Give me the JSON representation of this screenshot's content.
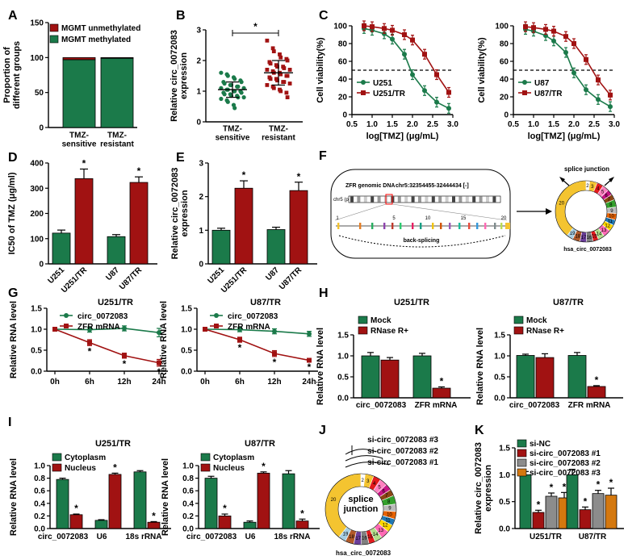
{
  "colors": {
    "green": "#1b7a4a",
    "red": "#a11212",
    "gray": "#8c8c8c",
    "orange": "#d4780f",
    "yellow": "#f4c430"
  },
  "chart_data": [
    {
      "id": "A",
      "type": "bar",
      "stacked": true,
      "ylabel": "Proportion of\ndifferent groups",
      "ylim": [
        0,
        150
      ],
      "yticks": [
        0,
        50,
        100,
        150
      ],
      "categories": [
        "TMZ-\nsensitive",
        "TMZ-\nresistant"
      ],
      "series": [
        {
          "name": "MGMT unmethylated",
          "values": [
            3,
            1
          ]
        },
        {
          "name": "MGMT methylated",
          "values": [
            97,
            99
          ]
        }
      ],
      "legend": "top-left"
    },
    {
      "id": "B",
      "type": "scatter",
      "ylabel": "Relative circ_0072083\nexpression",
      "ylim": [
        0,
        3
      ],
      "yticks": [
        0,
        1,
        2,
        3
      ],
      "categories": [
        "TMZ-\nsensitive",
        "TMZ-\nresistant"
      ],
      "groups": [
        {
          "mean": 1.05,
          "sd": 0.25,
          "points": [
            1.6,
            1.55,
            1.5,
            1.45,
            1.4,
            1.35,
            1.3,
            1.3,
            1.25,
            1.2,
            1.2,
            1.15,
            1.15,
            1.1,
            1.1,
            1.05,
            1.05,
            1.0,
            1.0,
            1.0,
            0.95,
            0.95,
            0.9,
            0.9,
            0.85,
            0.85,
            0.8,
            0.8,
            0.75,
            0.7,
            0.65,
            0.55,
            0.45
          ]
        },
        {
          "mean": 1.6,
          "sd": 0.4,
          "points": [
            2.65,
            2.4,
            2.3,
            2.2,
            2.1,
            2.05,
            2.0,
            1.95,
            1.9,
            1.85,
            1.8,
            1.8,
            1.75,
            1.7,
            1.7,
            1.65,
            1.6,
            1.6,
            1.55,
            1.5,
            1.5,
            1.45,
            1.4,
            1.4,
            1.35,
            1.3,
            1.3,
            1.25,
            1.2,
            1.15,
            1.1,
            1.05,
            1.0,
            0.95,
            0.8
          ]
        }
      ],
      "annotation": "*"
    },
    {
      "id": "C1",
      "type": "line",
      "xlabel": "log[TMZ] (μg/mL)",
      "ylabel": "Cell viability(%)",
      "xlim": [
        0.5,
        3.0
      ],
      "ylim": [
        0,
        100
      ],
      "xticks": [
        "0.5",
        "1.0",
        "1.5",
        "2.0",
        "2.5",
        "3.0"
      ],
      "yticks": [
        0,
        20,
        40,
        60,
        80,
        100
      ],
      "refline": 50,
      "x": [
        0.8,
        1.0,
        1.3,
        1.5,
        1.8,
        2.0,
        2.3,
        2.6,
        2.9
      ],
      "series": [
        {
          "name": "U251",
          "values": [
            97,
            95,
            91,
            85,
            68,
            45,
            27,
            14,
            7
          ]
        },
        {
          "name": "U251/TR",
          "values": [
            100,
            99,
            97,
            95,
            90,
            84,
            68,
            45,
            25
          ]
        }
      ],
      "legend": "bottom-left"
    },
    {
      "id": "C2",
      "type": "line",
      "xlabel": "log[TMZ] (μg/mL)",
      "ylabel": "Cell viability(%)",
      "xlim": [
        0.5,
        3.0
      ],
      "ylim": [
        0,
        100
      ],
      "xticks": [
        "0.5",
        "1.0",
        "1.5",
        "2.0",
        "2.5",
        "3.0"
      ],
      "yticks": [
        0,
        20,
        40,
        60,
        80,
        100
      ],
      "refline": 50,
      "x": [
        0.8,
        1.0,
        1.3,
        1.5,
        1.8,
        2.0,
        2.3,
        2.6,
        2.9
      ],
      "series": [
        {
          "name": "U87",
          "values": [
            96,
            94,
            89,
            83,
            70,
            47,
            28,
            17,
            9
          ]
        },
        {
          "name": "U87/TR",
          "values": [
            99,
            98,
            96,
            94,
            88,
            80,
            62,
            39,
            22
          ]
        }
      ],
      "legend": "bottom-left"
    },
    {
      "id": "D",
      "type": "bar",
      "ylabel": "IC50 of TMZ (μg/ml)",
      "ylim": [
        0,
        400
      ],
      "yticks": [
        0,
        100,
        200,
        300,
        400
      ],
      "categories": [
        "U251",
        "U251/TR",
        "U87",
        "U87/TR"
      ],
      "values": [
        122,
        338,
        108,
        323
      ],
      "errors": [
        12,
        38,
        8,
        22
      ],
      "stars": [
        false,
        true,
        false,
        true
      ]
    },
    {
      "id": "E",
      "type": "bar",
      "ylabel": "Relative circ_0072083\nexpression",
      "ylim": [
        0,
        3
      ],
      "yticks": [
        0,
        1,
        2,
        3
      ],
      "categories": [
        "U251",
        "U251/TR",
        "U87",
        "U87/TR"
      ],
      "values": [
        1.0,
        2.25,
        1.02,
        2.18
      ],
      "errors": [
        0.06,
        0.22,
        0.07,
        0.25
      ],
      "stars": [
        false,
        true,
        false,
        true
      ]
    },
    {
      "id": "G1",
      "type": "line",
      "title": "U251/TR",
      "ylabel": "Relative RNA level",
      "ylim": [
        0,
        1.5
      ],
      "yticks": [
        "0.0",
        "0.5",
        "1.0",
        "1.5"
      ],
      "categories": [
        "0h",
        "6h",
        "12h",
        "24h"
      ],
      "series": [
        {
          "name": "circ_0072083",
          "values": [
            1.0,
            0.99,
            1.02,
            0.92
          ],
          "errors": [
            0.03,
            0.06,
            0.06,
            0.1
          ]
        },
        {
          "name": "ZFR mRNA",
          "values": [
            1.0,
            0.68,
            0.37,
            0.2
          ],
          "errors": [
            0.03,
            0.07,
            0.06,
            0.08
          ]
        }
      ],
      "stars": [
        "",
        "*",
        "*",
        "*"
      ]
    },
    {
      "id": "G2",
      "type": "line",
      "title": "U87/TR",
      "ylabel": "Relative RNA level",
      "ylim": [
        0,
        1.5
      ],
      "yticks": [
        "0.0",
        "0.5",
        "1.0",
        "1.5"
      ],
      "categories": [
        "0h",
        "6h",
        "12h",
        "24h"
      ],
      "series": [
        {
          "name": "circ_0072083",
          "values": [
            1.0,
            0.99,
            0.95,
            0.89
          ],
          "errors": [
            0.03,
            0.05,
            0.06,
            0.06
          ]
        },
        {
          "name": "ZFR mRNA",
          "values": [
            1.0,
            0.75,
            0.42,
            0.26
          ],
          "errors": [
            0.03,
            0.06,
            0.07,
            0.03
          ]
        }
      ],
      "stars": [
        "",
        "*",
        "*",
        "*"
      ]
    },
    {
      "id": "H1",
      "type": "bar",
      "title": "U251/TR",
      "ylabel": "Relative RNA level",
      "ylim": [
        0,
        1.5
      ],
      "yticks": [
        "0.0",
        "0.5",
        "1.0",
        "1.5"
      ],
      "categories": [
        "circ_0072083",
        "ZFR mRNA"
      ],
      "series": [
        {
          "name": "Mock",
          "values": [
            1.0,
            1.0
          ],
          "errors": [
            0.08,
            0.06
          ]
        },
        {
          "name": "RNase R+",
          "values": [
            0.9,
            0.23
          ],
          "errors": [
            0.06,
            0.03
          ]
        }
      ],
      "stars": [
        [
          "",
          ""
        ],
        [
          "",
          "*"
        ]
      ]
    },
    {
      "id": "H2",
      "type": "bar",
      "title": "U87/TR",
      "ylabel": "Relative RNA level",
      "ylim": [
        0,
        1.5
      ],
      "yticks": [
        "0.0",
        "0.5",
        "1.0",
        "1.5"
      ],
      "categories": [
        "circ_0072083",
        "ZFR mRNA"
      ],
      "series": [
        {
          "name": "Mock",
          "values": [
            1.01,
            1.01
          ],
          "errors": [
            0.03,
            0.07
          ]
        },
        {
          "name": "RNase R+",
          "values": [
            0.96,
            0.27
          ],
          "errors": [
            0.09,
            0.02
          ]
        }
      ],
      "stars": [
        [
          "",
          ""
        ],
        [
          "",
          "*"
        ]
      ]
    },
    {
      "id": "I1",
      "type": "bar",
      "title": "U251/TR",
      "ylabel": "Relative RNA level",
      "ylim": [
        0,
        1.0
      ],
      "yticks": [
        "0.0",
        "0.2",
        "0.4",
        "0.6",
        "0.8",
        "1.0"
      ],
      "categories": [
        "circ_0072083",
        "U6",
        "18s rRNA"
      ],
      "series": [
        {
          "name": "Cytoplasm",
          "values": [
            0.78,
            0.13,
            0.9
          ],
          "errors": [
            0.02,
            0.01,
            0.02
          ]
        },
        {
          "name": "Nucleus",
          "values": [
            0.22,
            0.86,
            0.1
          ],
          "errors": [
            0.01,
            0.02,
            0.01
          ]
        }
      ],
      "stars": [
        [
          "",
          "",
          ""
        ],
        [
          "*",
          "*",
          "*"
        ]
      ]
    },
    {
      "id": "I2",
      "type": "bar",
      "title": "U87/TR",
      "ylabel": "Relative RNA level",
      "ylim": [
        0,
        1.0
      ],
      "yticks": [
        "0.0",
        "0.2",
        "0.4",
        "0.6",
        "0.8",
        "1.0"
      ],
      "categories": [
        "circ_0072083",
        "U6",
        "18s rRNA"
      ],
      "series": [
        {
          "name": "Cytoplasm",
          "values": [
            0.8,
            0.1,
            0.87
          ],
          "errors": [
            0.03,
            0.02,
            0.05
          ]
        },
        {
          "name": "Nucleus",
          "values": [
            0.2,
            0.88,
            0.12
          ],
          "errors": [
            0.03,
            0.02,
            0.03
          ]
        }
      ],
      "stars": [
        [
          "",
          "",
          ""
        ],
        [
          "*",
          "*",
          "*"
        ]
      ]
    },
    {
      "id": "K",
      "type": "bar",
      "ylabel": "Relative circ_0072083\nexpression",
      "ylim": [
        0,
        1.5
      ],
      "yticks": [
        "0.0",
        "0.5",
        "1.0",
        "1.5"
      ],
      "categories": [
        "U251/TR",
        "U87/TR"
      ],
      "series": [
        {
          "name": "si-NC",
          "values": [
            1.0,
            1.0
          ],
          "errors": [
            0.06,
            0.1
          ]
        },
        {
          "name": "si-circ_0072083 #1",
          "values": [
            0.3,
            0.35
          ],
          "errors": [
            0.04,
            0.05
          ]
        },
        {
          "name": "si-circ_0072083 #2",
          "values": [
            0.6,
            0.65
          ],
          "errors": [
            0.06,
            0.06
          ]
        },
        {
          "name": "si-circ_0072083 #3",
          "values": [
            0.57,
            0.62
          ],
          "errors": [
            0.1,
            0.13
          ]
        }
      ],
      "stars": [
        [
          "",
          ""
        ],
        [
          "*",
          "*"
        ],
        [
          "*",
          "*"
        ],
        [
          "*",
          "*"
        ]
      ]
    }
  ],
  "panels": {
    "A": "A",
    "B": "B",
    "C": "C",
    "D": "D",
    "E": "E",
    "F": "F",
    "G": "G",
    "H": "H",
    "I": "I",
    "J": "J",
    "K": "K"
  },
  "diagram_F": {
    "title": "ZFR genomic DNA",
    "coords": "chr5:32354455-32444434 [-]",
    "chrom": "chr5 (p13)",
    "exons": [
      "1",
      "5",
      "10",
      "15",
      "20"
    ],
    "backsplice": "back-splicing",
    "junction": "splice junction",
    "circ_name": "hsa_circ_0072083",
    "ring": [
      "20",
      "2",
      "3",
      "4",
      "5",
      "6",
      "7",
      "8",
      "9",
      "10",
      "11",
      "12",
      "13",
      "14",
      "15",
      "16",
      "17",
      "18",
      "19"
    ]
  },
  "diagram_J": {
    "sirnas": [
      "si-circ_0072083 #3",
      "si-circ_0072083 #2",
      "si-circ_0072083 #1"
    ],
    "center": "splice\njunction",
    "circ_name": "hsa_circ_0072083",
    "ring": [
      "20",
      "2",
      "3",
      "4",
      "5",
      "6",
      "7",
      "8",
      "9",
      "10",
      "11",
      "12",
      "13",
      "14",
      "15",
      "16",
      "17",
      "18",
      "19"
    ]
  }
}
